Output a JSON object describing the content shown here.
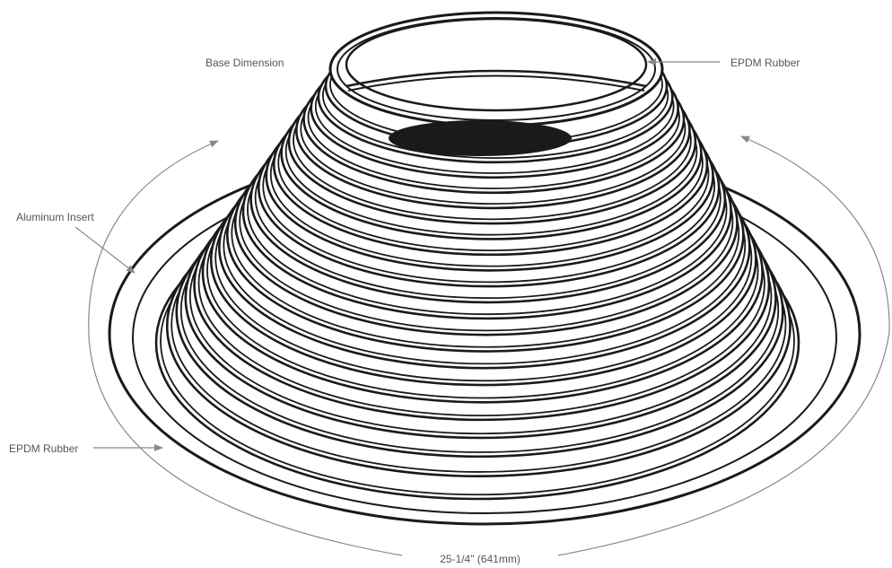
{
  "labels": {
    "base_dimension": "Base Dimension",
    "epdm_top": "EPDM Rubber",
    "aluminum_insert": "Aluminum Insert",
    "epdm_bottom": "EPDM Rubber",
    "base_measurement": "25-1/4\" (641mm)"
  },
  "colors": {
    "outline": "#1a1a1a",
    "callout": "#888888",
    "label_text": "#555555",
    "background": "#ffffff"
  }
}
